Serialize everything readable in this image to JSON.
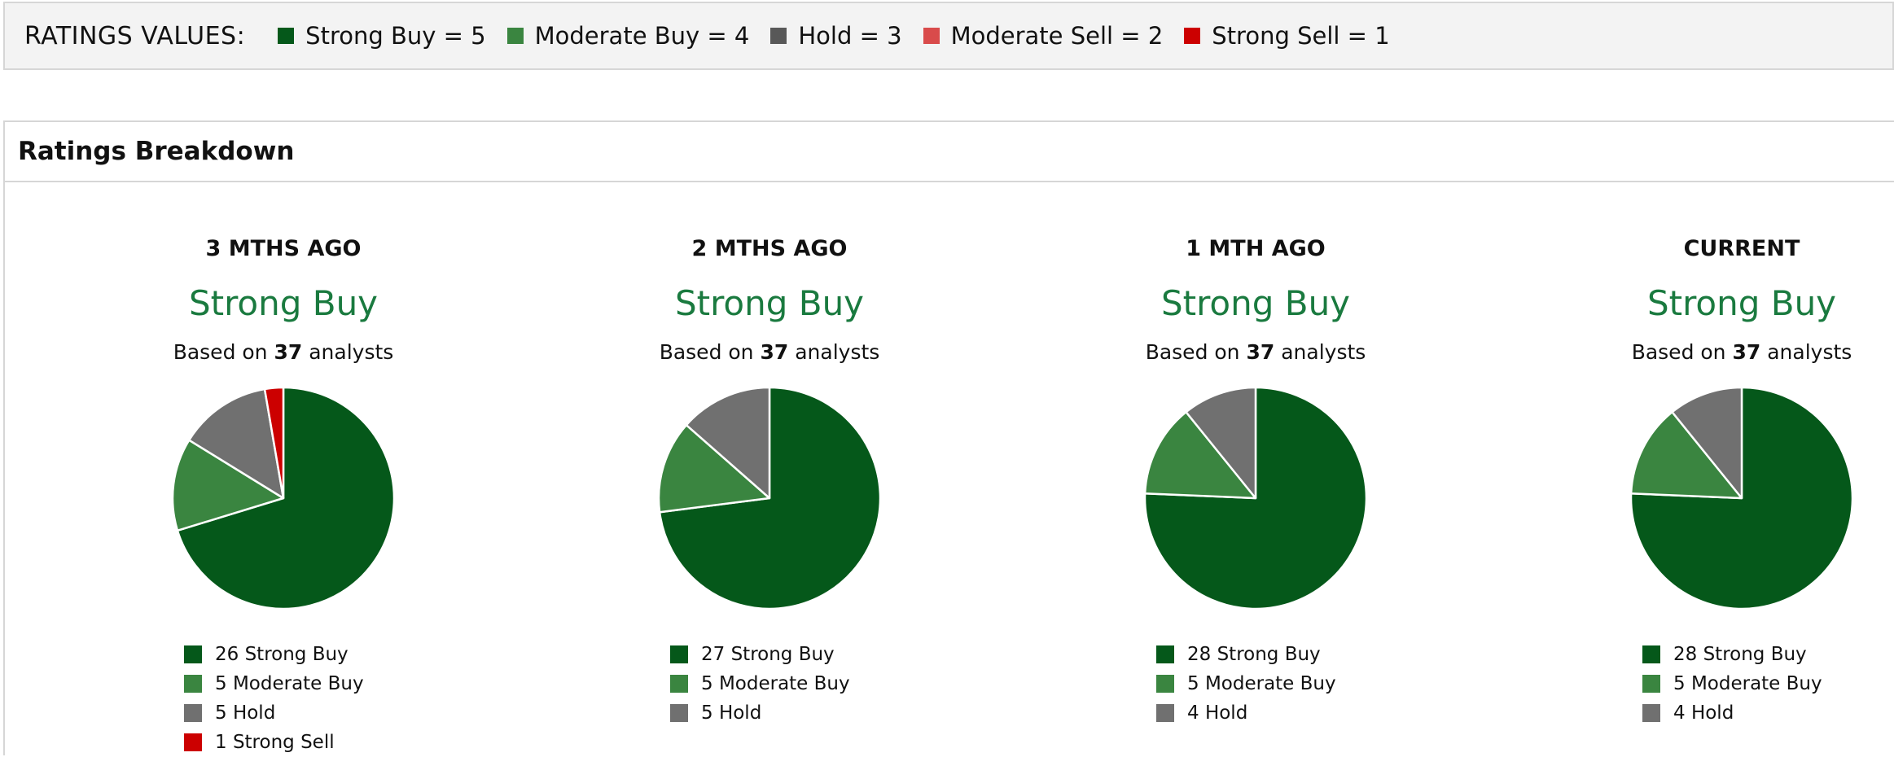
{
  "legend": {
    "title": "RATINGS VALUES:",
    "items": [
      {
        "label": "Strong Buy = 5",
        "color": "#05581a"
      },
      {
        "label": "Moderate Buy = 4",
        "color": "#3a8540"
      },
      {
        "label": "Hold = 3",
        "color": "#585858"
      },
      {
        "label": "Moderate Sell = 2",
        "color": "#d94b4b"
      },
      {
        "label": "Strong Sell = 1",
        "color": "#cc0000"
      }
    ]
  },
  "breakdown": {
    "title": "Ratings Breakdown",
    "panels": [
      {
        "period": "3 MTHS AGO",
        "consensus": "Strong Buy",
        "based_prefix": "Based on ",
        "analysts": "37",
        "based_suffix": " analysts",
        "slices": [
          {
            "label": "26 Strong Buy",
            "value": 26,
            "color": "#05581a"
          },
          {
            "label": "5 Moderate Buy",
            "value": 5,
            "color": "#3a8540"
          },
          {
            "label": "5 Hold",
            "value": 5,
            "color": "#707070"
          },
          {
            "label": "1 Strong Sell",
            "value": 1,
            "color": "#cc0000"
          }
        ]
      },
      {
        "period": "2 MTHS AGO",
        "consensus": "Strong Buy",
        "based_prefix": "Based on ",
        "analysts": "37",
        "based_suffix": " analysts",
        "slices": [
          {
            "label": "27 Strong Buy",
            "value": 27,
            "color": "#05581a"
          },
          {
            "label": "5 Moderate Buy",
            "value": 5,
            "color": "#3a8540"
          },
          {
            "label": "5 Hold",
            "value": 5,
            "color": "#707070"
          }
        ]
      },
      {
        "period": "1 MTH AGO",
        "consensus": "Strong Buy",
        "based_prefix": "Based on ",
        "analysts": "37",
        "based_suffix": " analysts",
        "slices": [
          {
            "label": "28 Strong Buy",
            "value": 28,
            "color": "#05581a"
          },
          {
            "label": "5 Moderate Buy",
            "value": 5,
            "color": "#3a8540"
          },
          {
            "label": "4 Hold",
            "value": 4,
            "color": "#707070"
          }
        ]
      },
      {
        "period": "CURRENT",
        "consensus": "Strong Buy",
        "based_prefix": "Based on ",
        "analysts": "37",
        "based_suffix": " analysts",
        "slices": [
          {
            "label": "28 Strong Buy",
            "value": 28,
            "color": "#05581a"
          },
          {
            "label": "5 Moderate Buy",
            "value": 5,
            "color": "#3a8540"
          },
          {
            "label": "4 Hold",
            "value": 4,
            "color": "#707070"
          }
        ]
      }
    ]
  }
}
